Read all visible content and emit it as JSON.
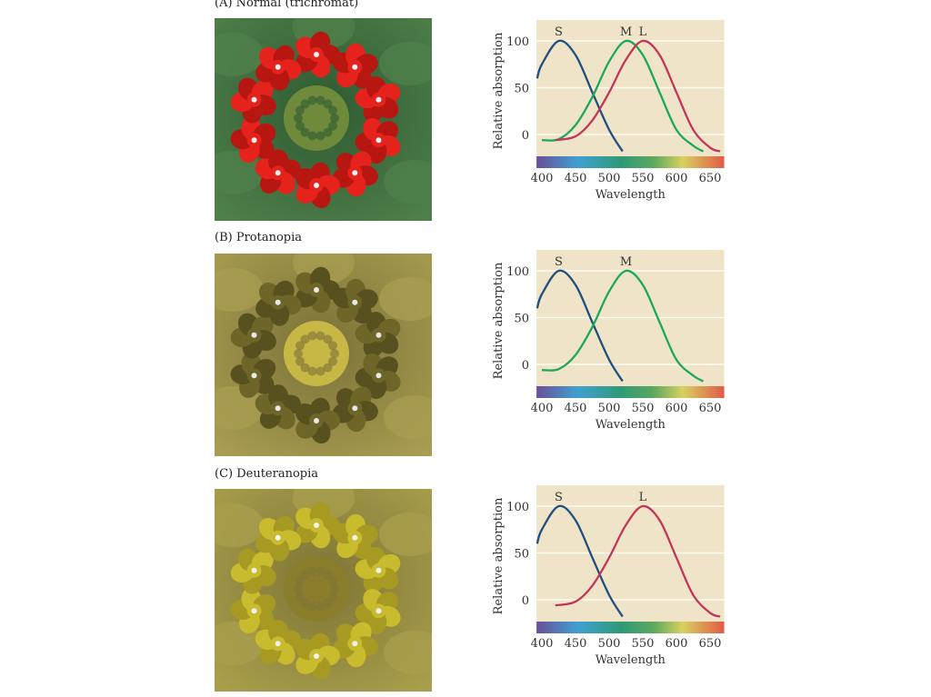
{
  "panels": [
    {
      "label": "(A)  Normal (trichromat)",
      "petal": "#e5231c",
      "petal_dark": "#b81610",
      "bg": "#4f7f4a",
      "bg2": "#2f5a32",
      "center": "#6f8a3a",
      "dot": "#f2f2f2"
    },
    {
      "label": "(B)  Protanopia",
      "petal": "#6e6629",
      "petal_dark": "#57501f",
      "bg": "#a89c50",
      "bg2": "#7b7238",
      "center": "#c7b845",
      "dot": "#e8e8e8"
    },
    {
      "label": "(C)  Deuteranopia",
      "petal": "#c9bb2e",
      "petal_dark": "#a69a22",
      "bg": "#a99e4c",
      "bg2": "#7e7535",
      "center": "#8a7e2c",
      "dot": "#f2f2f2"
    }
  ],
  "chart_data": [
    {
      "type": "line",
      "xlabel": "Wavelength",
      "ylabel": "Relative absorption",
      "xticks": [
        400,
        450,
        500,
        550,
        600,
        650
      ],
      "yticks": [
        0,
        50,
        100
      ],
      "xlim": [
        392,
        671
      ],
      "ylim": [
        -25,
        120
      ],
      "series": [
        {
          "name": "S",
          "color": "#1f4f7e",
          "peak": 425,
          "x": [
            393,
            400,
            425,
            450,
            475,
            500,
            520
          ],
          "y": [
            60,
            75,
            100,
            85,
            45,
            5,
            -18
          ]
        },
        {
          "name": "M",
          "color": "#1aa85a",
          "peak": 525,
          "x": [
            400,
            425,
            450,
            475,
            500,
            525,
            550,
            575,
            600,
            625,
            640
          ],
          "y": [
            -6,
            -5,
            10,
            40,
            78,
            100,
            85,
            45,
            5,
            -12,
            -18
          ]
        },
        {
          "name": "L",
          "color": "#c2365a",
          "peak": 550,
          "x": [
            420,
            450,
            475,
            500,
            525,
            550,
            575,
            600,
            625,
            650,
            665
          ],
          "y": [
            -6,
            -2,
            15,
            45,
            80,
            100,
            85,
            45,
            5,
            -14,
            -18
          ]
        }
      ]
    },
    {
      "type": "line",
      "xlabel": "Wavelength",
      "ylabel": "Relative absorption",
      "xticks": [
        400,
        450,
        500,
        550,
        600,
        650
      ],
      "yticks": [
        0,
        50,
        100
      ],
      "xlim": [
        392,
        671
      ],
      "ylim": [
        -25,
        120
      ],
      "series": [
        {
          "name": "S",
          "color": "#1f4f7e",
          "peak": 425,
          "x": [
            393,
            400,
            425,
            450,
            475,
            500,
            520
          ],
          "y": [
            60,
            75,
            100,
            85,
            45,
            5,
            -18
          ]
        },
        {
          "name": "M",
          "color": "#1aa85a",
          "peak": 525,
          "x": [
            400,
            425,
            450,
            475,
            500,
            525,
            550,
            575,
            600,
            625,
            640
          ],
          "y": [
            -6,
            -5,
            10,
            40,
            78,
            100,
            85,
            45,
            5,
            -12,
            -18
          ]
        }
      ]
    },
    {
      "type": "line",
      "xlabel": "Wavelength",
      "ylabel": "Relative absorption",
      "xticks": [
        400,
        450,
        500,
        550,
        600,
        650
      ],
      "yticks": [
        0,
        50,
        100
      ],
      "xlim": [
        392,
        671
      ],
      "ylim": [
        -25,
        120
      ],
      "series": [
        {
          "name": "S",
          "color": "#1f4f7e",
          "peak": 425,
          "x": [
            393,
            400,
            425,
            450,
            475,
            500,
            520
          ],
          "y": [
            60,
            75,
            100,
            85,
            45,
            5,
            -18
          ]
        },
        {
          "name": "L",
          "color": "#c2365a",
          "peak": 550,
          "x": [
            420,
            450,
            475,
            500,
            525,
            550,
            575,
            600,
            625,
            650,
            665
          ],
          "y": [
            -6,
            -2,
            15,
            45,
            80,
            100,
            85,
            45,
            5,
            -14,
            -18
          ]
        }
      ]
    }
  ]
}
